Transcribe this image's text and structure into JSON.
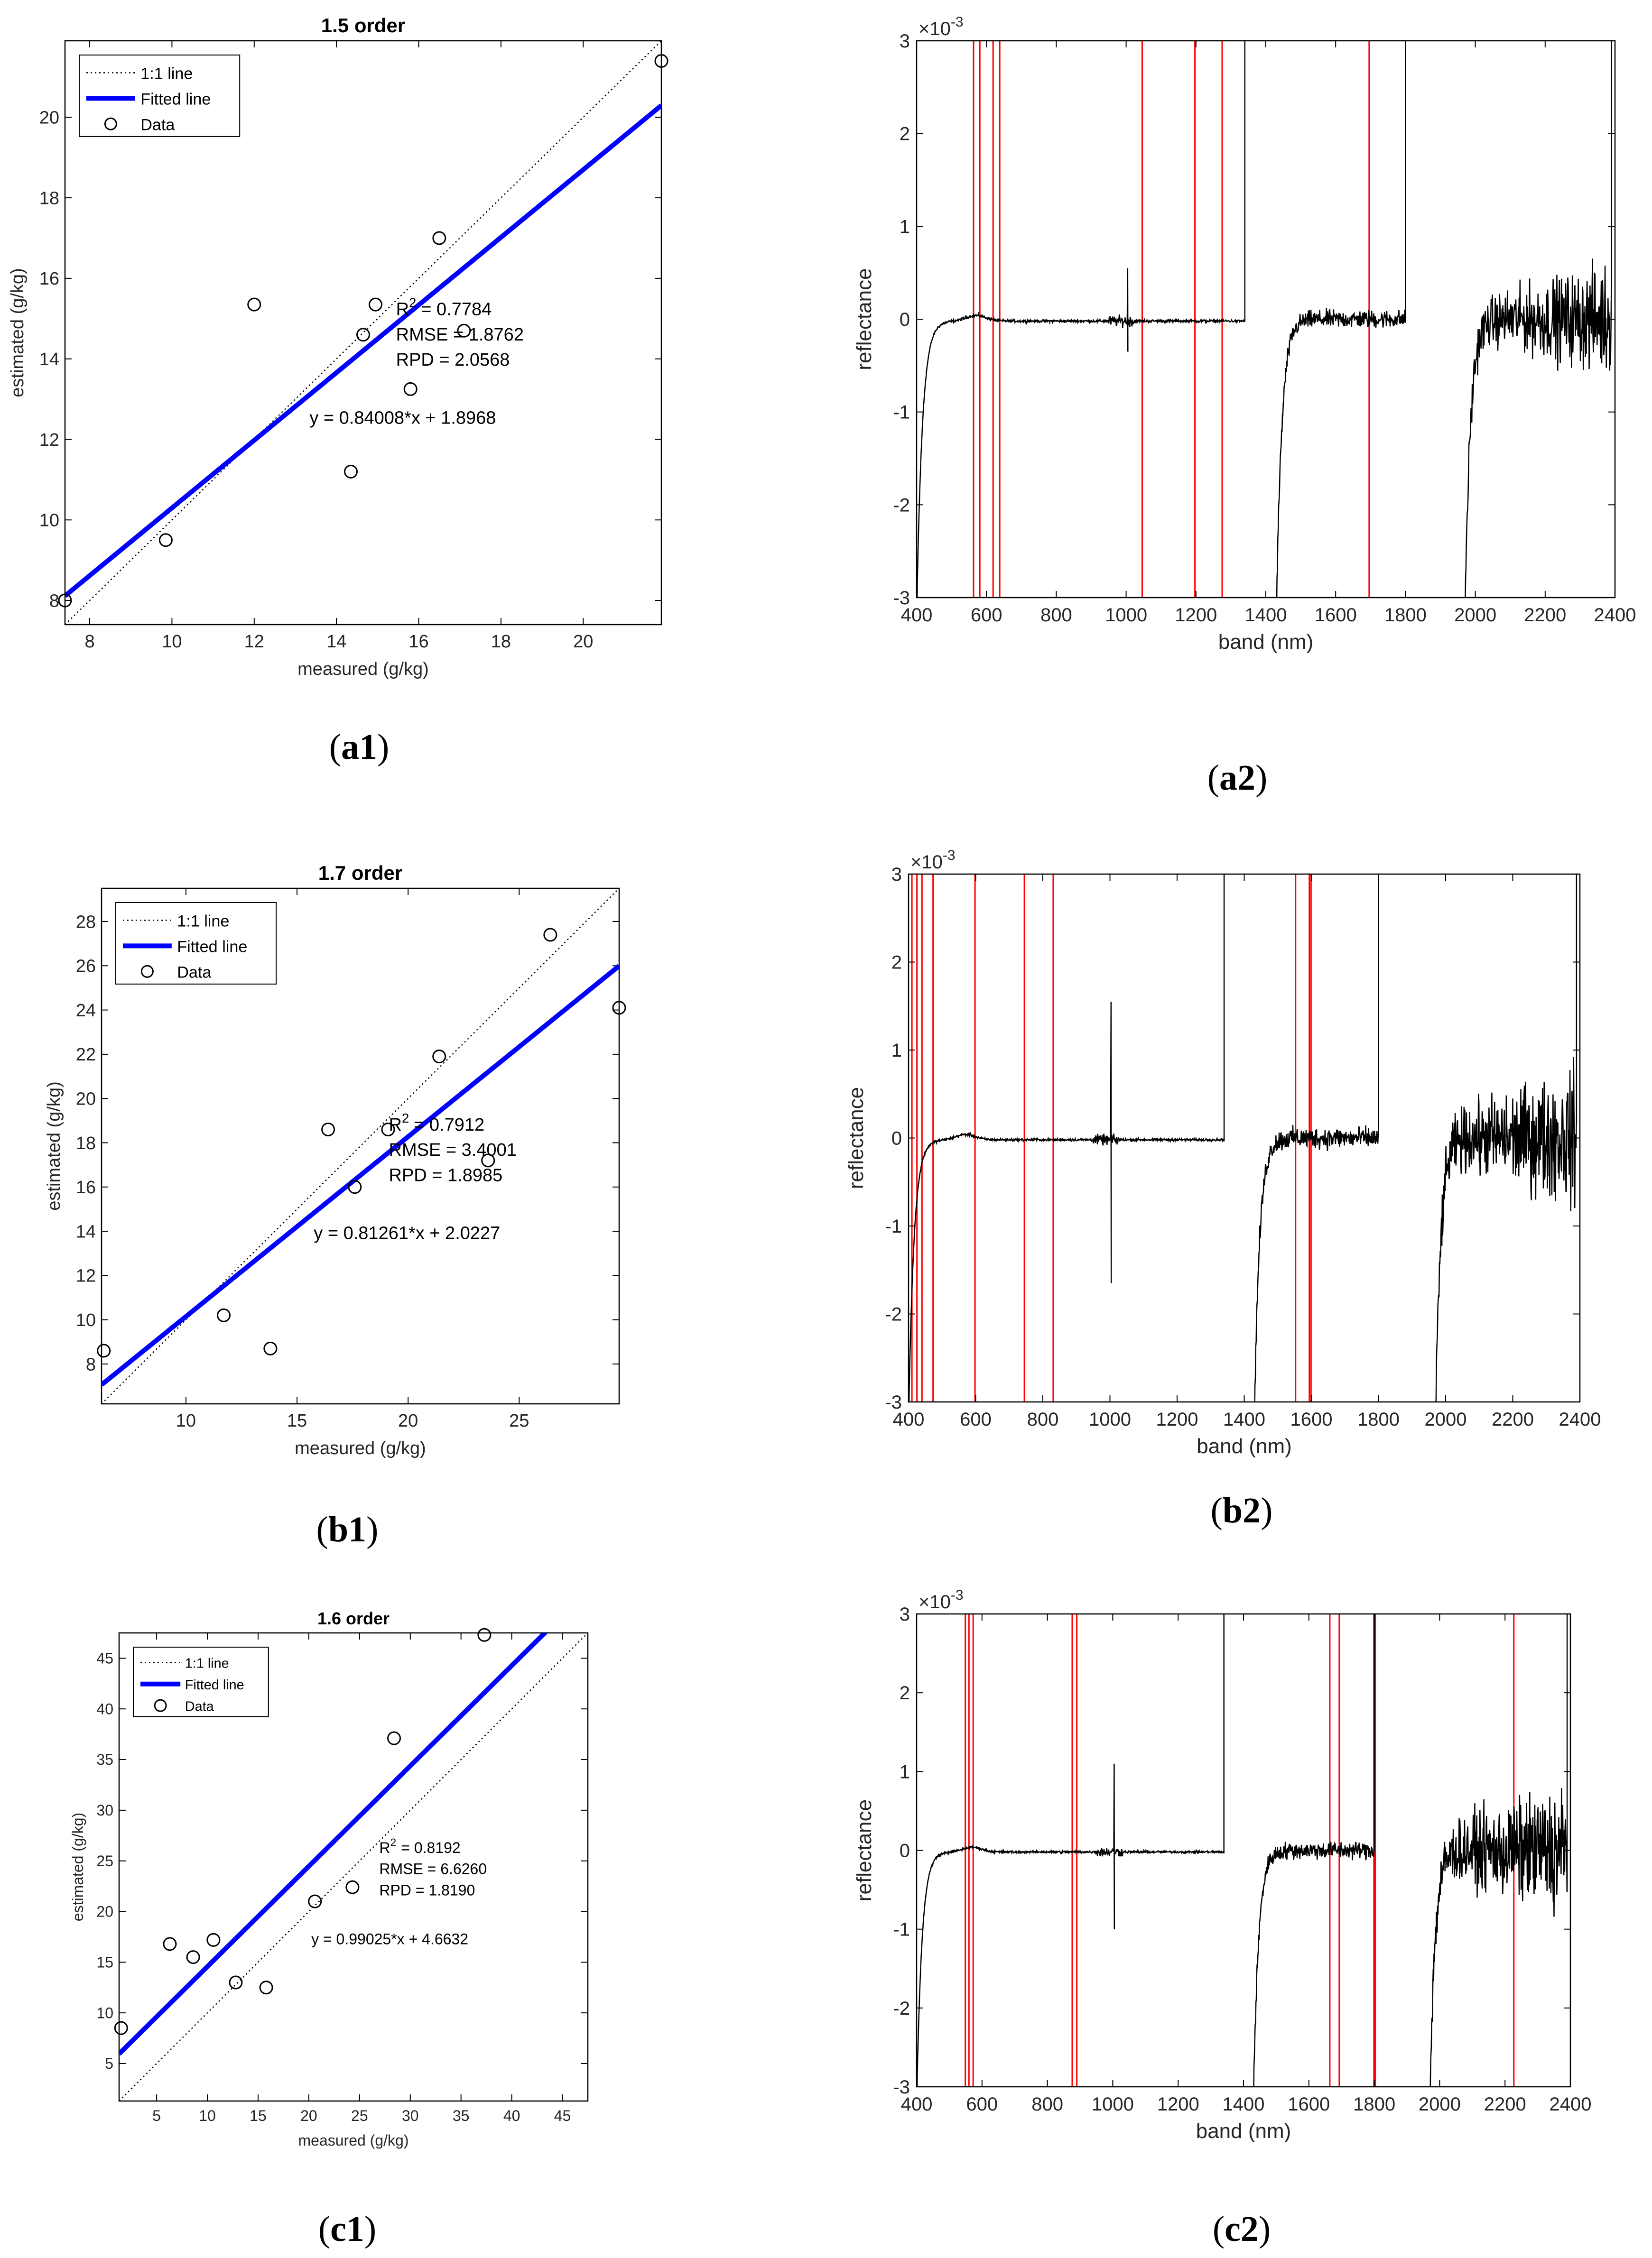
{
  "panel_labels": {
    "a1": "a1",
    "a2": "a2",
    "b1": "b1",
    "b2": "b2",
    "c1": "c1",
    "c2": "c2"
  },
  "colors": {
    "fit_line": "#0000ff",
    "marker_lines": "#ff0000",
    "spectrum": "#000000",
    "axes": "#000000"
  },
  "chart_data": [
    {
      "id": "a1",
      "type": "scatter",
      "title": "1.5 order",
      "xlabel": "measured (g/kg)",
      "ylabel": "estimated (g/kg)",
      "xlim": [
        7.4,
        21.9
      ],
      "ylim": [
        7.4,
        21.9
      ],
      "xticks": [
        8,
        10,
        12,
        14,
        16,
        18,
        20
      ],
      "yticks": [
        8,
        10,
        12,
        14,
        16,
        18,
        20
      ],
      "legend": [
        "1:1 line",
        "Fitted line",
        "Data"
      ],
      "legend_position": "top-left",
      "points": [
        [
          7.4,
          8.0
        ],
        [
          9.85,
          9.5
        ],
        [
          12.0,
          15.35
        ],
        [
          14.35,
          11.2
        ],
        [
          14.65,
          14.6
        ],
        [
          14.95,
          15.35
        ],
        [
          15.8,
          13.25
        ],
        [
          16.5,
          17.0
        ],
        [
          17.1,
          14.7
        ],
        [
          21.9,
          21.4
        ]
      ],
      "fit": {
        "slope": 0.84008,
        "intercept": 1.8968
      },
      "stats": {
        "r2_label": "R",
        "r2_sup": "2",
        "r2_value": "=  0.7784",
        "rmse": "RMSE = 1.8762",
        "rpd": "RPD  =  2.0568"
      },
      "equation": "y = 0.84008*x + 1.8968"
    },
    {
      "id": "b1",
      "type": "scatter",
      "title": "1.7 order",
      "xlabel": "measured (g/kg)",
      "ylabel": "estimated (g/kg)",
      "xlim": [
        6.2,
        29.5
      ],
      "ylim": [
        6.2,
        29.5
      ],
      "xticks": [
        10,
        15,
        20,
        25
      ],
      "yticks": [
        8,
        10,
        12,
        14,
        16,
        18,
        20,
        22,
        24,
        26,
        28
      ],
      "legend": [
        "1:1 line",
        "Fitted line",
        "Data"
      ],
      "legend_position": "top-left",
      "points": [
        [
          6.3,
          8.6
        ],
        [
          11.7,
          10.2
        ],
        [
          13.8,
          8.7
        ],
        [
          16.4,
          18.6
        ],
        [
          17.6,
          16.0
        ],
        [
          19.1,
          18.6
        ],
        [
          21.4,
          21.9
        ],
        [
          23.6,
          17.2
        ],
        [
          26.4,
          27.4
        ],
        [
          29.5,
          24.1
        ]
      ],
      "fit": {
        "slope": 0.81261,
        "intercept": 2.0227
      },
      "stats": {
        "r2_label": "R",
        "r2_sup": "2",
        "r2_value": "=  0.7912",
        "rmse": "RMSE = 3.4001",
        "rpd": "RPD  = 1.8985"
      },
      "equation": "y = 0.81261*x + 2.0227"
    },
    {
      "id": "c1",
      "type": "scatter",
      "title": "1.6 order",
      "xlabel": "measured (g/kg)",
      "ylabel": "estimated (g/kg)",
      "xlim": [
        1.3,
        47.5
      ],
      "ylim": [
        1.3,
        47.5
      ],
      "xticks": [
        5,
        10,
        15,
        20,
        25,
        30,
        35,
        40,
        45
      ],
      "yticks": [
        5,
        10,
        15,
        20,
        25,
        30,
        35,
        40,
        45
      ],
      "legend": [
        "1:1 line",
        "Fitted line",
        "Data"
      ],
      "legend_position": "top-left",
      "points": [
        [
          1.5,
          8.5
        ],
        [
          6.3,
          16.8
        ],
        [
          8.6,
          15.5
        ],
        [
          10.6,
          17.2
        ],
        [
          12.8,
          13.0
        ],
        [
          15.8,
          12.5
        ],
        [
          20.6,
          21.0
        ],
        [
          24.3,
          22.4
        ],
        [
          28.4,
          37.1
        ],
        [
          37.3,
          47.3
        ]
      ],
      "fit": {
        "slope": 0.99025,
        "intercept": 4.6632
      },
      "stats": {
        "r2_label": "R",
        "r2_sup": "2",
        "r2_value": "= 0.8192",
        "rmse": "RMSE = 6.6260",
        "rpd": "RPD = 1.8190"
      },
      "equation": "y = 0.99025*x + 4.6632"
    },
    {
      "id": "a2",
      "type": "line",
      "xlabel": "band (nm)",
      "ylabel": "reflectance",
      "exponent_label": "×10",
      "exponent_sup": "-3",
      "xlim": [
        400,
        2400
      ],
      "ylim": [
        -3,
        3
      ],
      "xticks": [
        400,
        600,
        800,
        1000,
        1200,
        1400,
        1600,
        1800,
        2000,
        2200,
        2400
      ],
      "yticks": [
        -3,
        -2,
        -1,
        0,
        1,
        2,
        3
      ],
      "selected_bands": [
        563,
        581,
        619,
        638,
        1046,
        1197,
        1275,
        1696
      ],
      "segments": [
        [
          400,
          1340
        ],
        [
          1430,
          1800
        ],
        [
          1970,
          2390
        ]
      ],
      "spikes": [
        {
          "x": 1005,
          "low": -0.35,
          "high": 0.55
        }
      ],
      "noise": [
        0.012,
        0.08,
        0.32
      ]
    },
    {
      "id": "b2",
      "type": "line",
      "xlabel": "band (nm)",
      "ylabel": "reflectance",
      "exponent_label": "×10",
      "exponent_sup": "-3",
      "xlim": [
        400,
        2400
      ],
      "ylim": [
        -3,
        3
      ],
      "xticks": [
        400,
        600,
        800,
        1000,
        1200,
        1400,
        1600,
        1800,
        2000,
        2200,
        2400
      ],
      "yticks": [
        -3,
        -2,
        -1,
        0,
        1,
        2,
        3
      ],
      "selected_bands": [
        410,
        425,
        440,
        473,
        598,
        745,
        831,
        1553,
        1594,
        1599
      ],
      "segments": [
        [
          400,
          1340
        ],
        [
          1430,
          1800
        ],
        [
          1970,
          2390
        ]
      ],
      "spikes": [
        {
          "x": 1003,
          "low": -1.65,
          "high": 1.55
        }
      ],
      "noise": [
        0.012,
        0.1,
        0.42
      ]
    },
    {
      "id": "c2",
      "type": "line",
      "xlabel": "band (nm)",
      "ylabel": "reflectance",
      "exponent_label": "×10",
      "exponent_sup": "-3",
      "xlim": [
        400,
        2400
      ],
      "ylim": [
        -3,
        3
      ],
      "xticks": [
        400,
        600,
        800,
        1000,
        1200,
        1400,
        1600,
        1800,
        2000,
        2200,
        2400
      ],
      "yticks": [
        -3,
        -2,
        -1,
        0,
        1,
        2,
        3
      ],
      "selected_bands": [
        549,
        560,
        573,
        876,
        890,
        1664,
        1693,
        1799,
        1803,
        2227
      ],
      "segments": [
        [
          400,
          1340
        ],
        [
          1430,
          1800
        ],
        [
          1970,
          2390
        ]
      ],
      "spikes": [
        {
          "x": 1005,
          "low": -1.0,
          "high": 1.1
        }
      ],
      "noise": [
        0.012,
        0.09,
        0.45
      ]
    }
  ]
}
